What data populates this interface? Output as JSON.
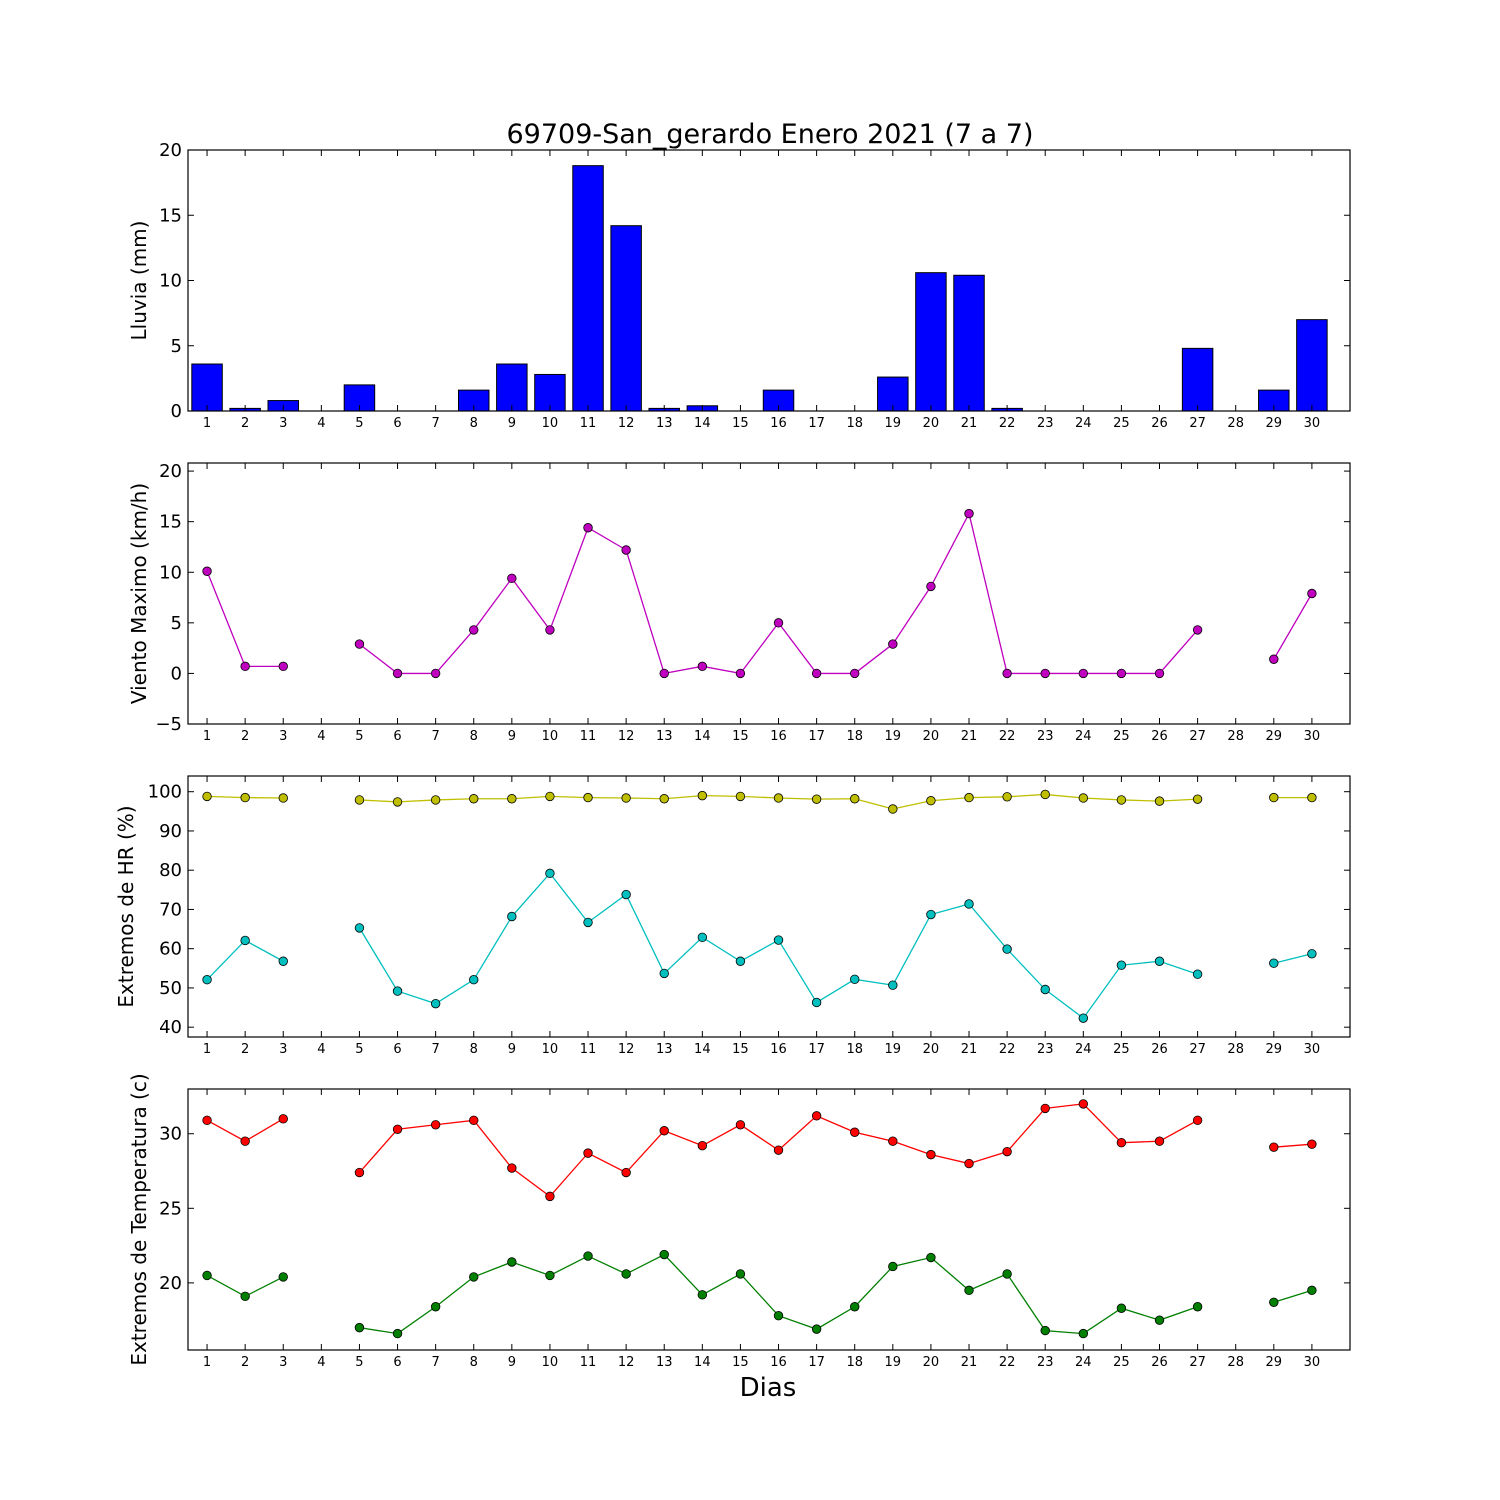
{
  "title": "69709-San_gerardo Enero 2021  (7 a 7)",
  "xlabel": "Dias",
  "chart_data": [
    {
      "type": "bar",
      "ylabel": "Lluvia (mm)",
      "ylim": [
        0,
        20
      ],
      "yticks": [
        0,
        5,
        10,
        15,
        20
      ],
      "ytick_labels": [
        "0",
        "5",
        "10",
        "15",
        "20"
      ],
      "categories": [
        "1",
        "2",
        "3",
        "4",
        "5",
        "6",
        "7",
        "8",
        "9",
        "10",
        "11",
        "12",
        "13",
        "14",
        "15",
        "16",
        "17",
        "18",
        "19",
        "20",
        "21",
        "22",
        "23",
        "24",
        "25",
        "26",
        "27",
        "28",
        "29",
        "30"
      ],
      "series": [
        {
          "color": "#0000ff",
          "values": [
            3.6,
            0.2,
            0.8,
            null,
            2.0,
            0,
            0,
            1.6,
            3.6,
            2.8,
            18.8,
            14.2,
            0.2,
            0.4,
            0,
            1.6,
            0,
            0,
            2.6,
            10.6,
            10.4,
            0.2,
            0,
            0,
            0,
            0,
            4.8,
            null,
            1.6,
            7.0
          ]
        }
      ]
    },
    {
      "type": "line",
      "ylabel": "Viento Maximo (km/h)",
      "ylim": [
        -5,
        20.8
      ],
      "yticks": [
        -5,
        0,
        5,
        10,
        15,
        20
      ],
      "ytick_labels": [
        "−5",
        "0",
        "5",
        "10",
        "15",
        "20"
      ],
      "categories": [
        "1",
        "2",
        "3",
        "4",
        "5",
        "6",
        "7",
        "8",
        "9",
        "10",
        "11",
        "12",
        "13",
        "14",
        "15",
        "16",
        "17",
        "18",
        "19",
        "20",
        "21",
        "22",
        "23",
        "24",
        "25",
        "26",
        "27",
        "28",
        "29",
        "30"
      ],
      "series": [
        {
          "color": "#bf00bf",
          "values": [
            10.1,
            0.7,
            0.7,
            null,
            2.9,
            0,
            0,
            4.3,
            9.4,
            4.3,
            14.4,
            12.2,
            0,
            0.7,
            0,
            5.0,
            0,
            0,
            2.9,
            8.6,
            15.8,
            0,
            0,
            0,
            0,
            0,
            4.3,
            null,
            1.4,
            7.9
          ]
        }
      ]
    },
    {
      "type": "line",
      "ylabel": "Extremos de HR (%)",
      "ylim": [
        37.5,
        104
      ],
      "yticks": [
        40,
        50,
        60,
        70,
        80,
        90,
        100
      ],
      "ytick_labels": [
        "40",
        "50",
        "60",
        "70",
        "80",
        "90",
        "100"
      ],
      "categories": [
        "1",
        "2",
        "3",
        "4",
        "5",
        "6",
        "7",
        "8",
        "9",
        "10",
        "11",
        "12",
        "13",
        "14",
        "15",
        "16",
        "17",
        "18",
        "19",
        "20",
        "21",
        "22",
        "23",
        "24",
        "25",
        "26",
        "27",
        "28",
        "29",
        "30"
      ],
      "series": [
        {
          "color": "#bfbf00",
          "values": [
            98.8,
            98.5,
            98.4,
            null,
            97.9,
            97.4,
            97.9,
            98.2,
            98.2,
            98.8,
            98.5,
            98.4,
            98.2,
            99.0,
            98.8,
            98.4,
            98.1,
            98.2,
            95.6,
            97.7,
            98.5,
            98.7,
            99.3,
            98.4,
            97.9,
            97.6,
            98.1,
            null,
            98.5,
            98.5
          ]
        },
        {
          "color": "#00bfbf",
          "values": [
            52.1,
            62.1,
            56.8,
            null,
            65.3,
            49.2,
            46.0,
            52.1,
            68.2,
            79.2,
            66.7,
            73.8,
            53.7,
            62.9,
            56.8,
            62.2,
            46.3,
            52.2,
            50.7,
            68.7,
            71.4,
            59.9,
            49.6,
            42.3,
            55.8,
            56.8,
            53.5,
            null,
            56.3,
            58.7
          ]
        }
      ]
    },
    {
      "type": "line",
      "ylabel": "Extremos de Temperatura (c)",
      "ylim": [
        15.5,
        33
      ],
      "yticks": [
        20,
        25,
        30
      ],
      "ytick_labels": [
        "20",
        "25",
        "30"
      ],
      "categories": [
        "1",
        "2",
        "3",
        "4",
        "5",
        "6",
        "7",
        "8",
        "9",
        "10",
        "11",
        "12",
        "13",
        "14",
        "15",
        "16",
        "17",
        "18",
        "19",
        "20",
        "21",
        "22",
        "23",
        "24",
        "25",
        "26",
        "27",
        "28",
        "29",
        "30"
      ],
      "series": [
        {
          "color": "#ff0000",
          "values": [
            30.9,
            29.5,
            31.0,
            null,
            27.4,
            30.3,
            30.6,
            30.9,
            27.7,
            25.8,
            28.7,
            27.4,
            30.2,
            29.2,
            30.6,
            28.9,
            31.2,
            30.1,
            29.5,
            28.6,
            28.0,
            28.8,
            31.7,
            32.0,
            29.4,
            29.5,
            30.9,
            null,
            29.1,
            29.3
          ]
        },
        {
          "color": "#007f00",
          "values": [
            20.5,
            19.1,
            20.4,
            null,
            17.0,
            16.6,
            18.4,
            20.4,
            21.4,
            20.5,
            21.8,
            20.6,
            21.9,
            19.2,
            20.6,
            17.8,
            16.9,
            18.4,
            21.1,
            21.7,
            19.5,
            20.6,
            16.8,
            16.6,
            18.3,
            17.5,
            18.4,
            null,
            18.7,
            19.5
          ]
        }
      ]
    }
  ]
}
